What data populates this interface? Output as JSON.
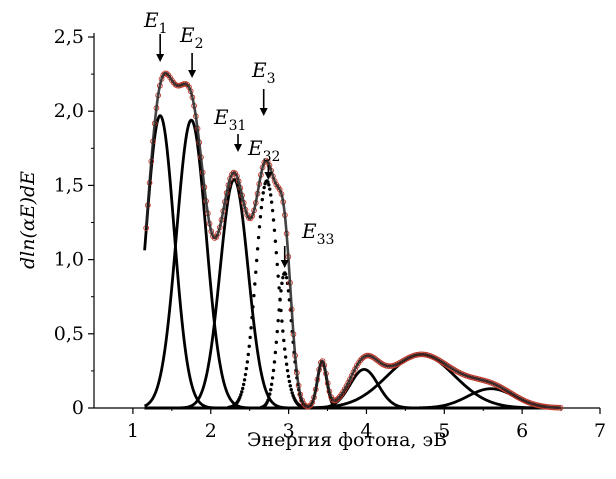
{
  "chart_data": {
    "type": "line",
    "xlabel": "Энергия фотона, эВ",
    "ylabel": "dln(αE)dE",
    "xlim": [
      0.5,
      7
    ],
    "ylim": [
      0,
      2.5
    ],
    "x_ticks": [
      1,
      2,
      3,
      4,
      5,
      6,
      7
    ],
    "x_tick_labels": [
      "1",
      "2",
      "3",
      "4",
      "5",
      "6",
      "7"
    ],
    "y_ticks": [
      0,
      0.5,
      1.0,
      1.5,
      2.0,
      2.5
    ],
    "y_tick_labels": [
      "0",
      "0,5",
      "1,0",
      "1,5",
      "2,0",
      "2,5"
    ],
    "grid": false,
    "legend": "none",
    "colors": {
      "fit_curve": "#000000",
      "experimental": "#c0392b",
      "sum_curve": "#222222"
    },
    "gaussian_components": [
      {
        "center": 1.35,
        "amplitude": 1.97,
        "width": 0.18
      },
      {
        "center": 1.75,
        "amplitude": 1.94,
        "width": 0.19
      },
      {
        "center": 2.3,
        "amplitude": 1.54,
        "width": 0.18
      },
      {
        "center": 2.72,
        "amplitude": 1.53,
        "width": 0.14,
        "style": "dotted"
      },
      {
        "center": 2.95,
        "amplitude": 0.91,
        "width": 0.09,
        "style": "dotted"
      },
      {
        "center": 3.43,
        "amplitude": 0.31,
        "width": 0.06
      },
      {
        "center": 3.97,
        "amplitude": 0.26,
        "width": 0.18
      },
      {
        "center": 4.7,
        "amplitude": 0.36,
        "width": 0.43
      },
      {
        "center": 5.6,
        "amplitude": 0.13,
        "width": 0.3
      }
    ],
    "component_range": [
      1.15,
      6.3
    ],
    "annotations": [
      {
        "name": "E",
        "sub": "1",
        "x": 1.35
      },
      {
        "name": "E",
        "sub": "2",
        "x": 1.76
      },
      {
        "name": "E",
        "sub": "3",
        "x": 2.68
      },
      {
        "name": "E",
        "sub": "31",
        "x": 2.35
      },
      {
        "name": "E",
        "sub": "32",
        "x": 2.74
      },
      {
        "name": "E",
        "sub": "33",
        "x": 2.95
      }
    ]
  }
}
